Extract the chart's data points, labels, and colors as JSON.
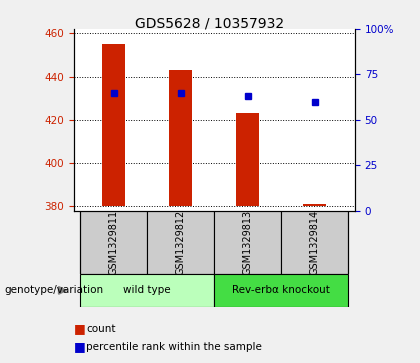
{
  "title": "GDS5628 / 10357932",
  "samples": [
    "GSM1329811",
    "GSM1329812",
    "GSM1329813",
    "GSM1329814"
  ],
  "counts": [
    455,
    443,
    423,
    381
  ],
  "percentiles": [
    65,
    65,
    63,
    60
  ],
  "bar_bottom": 380,
  "ylim_left": [
    378,
    462
  ],
  "ylim_right": [
    0,
    100
  ],
  "yticks_left": [
    380,
    400,
    420,
    440,
    460
  ],
  "yticks_right": [
    0,
    25,
    50,
    75,
    100
  ],
  "bar_color": "#cc2200",
  "percentile_color": "#0000cc",
  "groups": [
    {
      "label": "wild type",
      "samples": [
        0,
        1
      ],
      "color": "#bbffbb"
    },
    {
      "label": "Rev-erbα knockout",
      "samples": [
        2,
        3
      ],
      "color": "#44dd44"
    }
  ],
  "genotype_label": "genotype/variation",
  "legend_count_label": "count",
  "legend_percentile_label": "percentile rank within the sample",
  "sample_bg": "#cccccc",
  "plot_bg": "#ffffff",
  "fig_bg": "#f0f0f0",
  "bar_width": 0.35
}
